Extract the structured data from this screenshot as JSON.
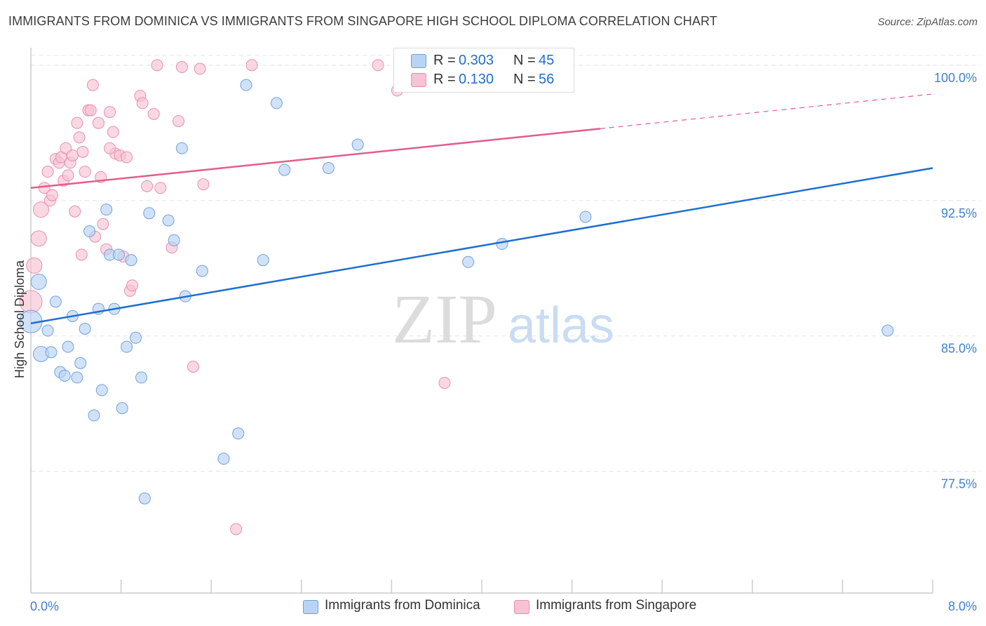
{
  "title": "IMMIGRANTS FROM DOMINICA VS IMMIGRANTS FROM SINGAPORE HIGH SCHOOL DIPLOMA CORRELATION CHART",
  "source": "Source: ZipAtlas.com",
  "watermark": {
    "zip": "ZIP",
    "atlas": "atlas"
  },
  "legend_stats": [
    {
      "r_label": "R =",
      "r_value": "0.303",
      "n_label": "N =",
      "n_value": "45"
    },
    {
      "r_label": "R =",
      "r_value": "0.130",
      "n_label": "N =",
      "n_value": "56"
    }
  ],
  "colors": {
    "dominica_fill": "#b8d3f4",
    "dominica_stroke": "#6fa1de",
    "dominica_line": "#1f6fd1",
    "singapore_fill": "#f8c3d3",
    "singapore_stroke": "#e890ac",
    "singapore_line": "#e35d8a",
    "tick_label": "#3f7fd4",
    "grid": "#e4e4e4"
  },
  "chart_data": {
    "type": "scatter",
    "title": "IMMIGRANTS FROM DOMINICA VS IMMIGRANTS FROM SINGAPORE HIGH SCHOOL DIPLOMA CORRELATION CHART",
    "xlabel": "",
    "ylabel": "High School Diploma",
    "xlim": [
      0,
      8
    ],
    "ylim": [
      71.5,
      101.2
    ],
    "x_tick_labels": [
      "0.0%",
      "8.0%"
    ],
    "y_ticks": [
      77.5,
      85.0,
      92.5,
      100.0
    ],
    "y_tick_labels": [
      "77.5%",
      "85.0%",
      "92.5%",
      "100.0%"
    ],
    "grid": "horizontal dashed",
    "legend_position": "bottom",
    "series": [
      {
        "name": "Immigrants from Dominica",
        "R": 0.303,
        "N": 45,
        "trend": {
          "x": [
            0.0,
            8.0
          ],
          "y": [
            85.7,
            94.3
          ],
          "dashed_from": null
        },
        "points": [
          {
            "x": 0.0,
            "y": 85.8,
            "s": 3
          },
          {
            "x": 0.07,
            "y": 88.0,
            "s": 2
          },
          {
            "x": 0.09,
            "y": 84.0,
            "s": 2
          },
          {
            "x": 0.15,
            "y": 85.3,
            "s": 1
          },
          {
            "x": 0.18,
            "y": 84.1,
            "s": 1
          },
          {
            "x": 0.22,
            "y": 86.9,
            "s": 1
          },
          {
            "x": 0.26,
            "y": 83.0,
            "s": 1
          },
          {
            "x": 0.3,
            "y": 82.8,
            "s": 1
          },
          {
            "x": 0.33,
            "y": 84.4,
            "s": 1
          },
          {
            "x": 0.37,
            "y": 86.1,
            "s": 1
          },
          {
            "x": 0.41,
            "y": 82.7,
            "s": 1
          },
          {
            "x": 0.44,
            "y": 83.5,
            "s": 1
          },
          {
            "x": 0.48,
            "y": 85.4,
            "s": 1
          },
          {
            "x": 0.52,
            "y": 90.8,
            "s": 1
          },
          {
            "x": 0.56,
            "y": 80.6,
            "s": 1
          },
          {
            "x": 0.6,
            "y": 86.5,
            "s": 1
          },
          {
            "x": 0.63,
            "y": 82.0,
            "s": 1
          },
          {
            "x": 0.67,
            "y": 92.0,
            "s": 1
          },
          {
            "x": 0.7,
            "y": 89.5,
            "s": 1
          },
          {
            "x": 0.74,
            "y": 86.5,
            "s": 1
          },
          {
            "x": 0.78,
            "y": 89.5,
            "s": 1
          },
          {
            "x": 0.81,
            "y": 81.0,
            "s": 1
          },
          {
            "x": 0.85,
            "y": 84.4,
            "s": 1
          },
          {
            "x": 0.89,
            "y": 89.2,
            "s": 1
          },
          {
            "x": 0.93,
            "y": 84.9,
            "s": 1
          },
          {
            "x": 0.98,
            "y": 82.7,
            "s": 1
          },
          {
            "x": 1.01,
            "y": 76.0,
            "s": 1
          },
          {
            "x": 1.05,
            "y": 91.8,
            "s": 1
          },
          {
            "x": 1.22,
            "y": 91.4,
            "s": 1
          },
          {
            "x": 1.27,
            "y": 90.3,
            "s": 1
          },
          {
            "x": 1.34,
            "y": 95.4,
            "s": 1
          },
          {
            "x": 1.37,
            "y": 87.2,
            "s": 1
          },
          {
            "x": 1.52,
            "y": 88.6,
            "s": 1
          },
          {
            "x": 1.71,
            "y": 78.2,
            "s": 1
          },
          {
            "x": 1.84,
            "y": 79.6,
            "s": 1
          },
          {
            "x": 1.91,
            "y": 98.9,
            "s": 1
          },
          {
            "x": 2.06,
            "y": 89.2,
            "s": 1
          },
          {
            "x": 2.18,
            "y": 97.9,
            "s": 1
          },
          {
            "x": 2.25,
            "y": 94.2,
            "s": 1
          },
          {
            "x": 2.64,
            "y": 94.3,
            "s": 1
          },
          {
            "x": 2.9,
            "y": 95.6,
            "s": 1
          },
          {
            "x": 3.88,
            "y": 89.1,
            "s": 1
          },
          {
            "x": 4.18,
            "y": 90.1,
            "s": 1
          },
          {
            "x": 4.92,
            "y": 91.6,
            "s": 1
          },
          {
            "x": 7.6,
            "y": 85.3,
            "s": 1
          }
        ]
      },
      {
        "name": "Immigrants from Singapore",
        "R": 0.13,
        "N": 56,
        "trend": {
          "x": [
            0.0,
            8.0
          ],
          "y": [
            93.2,
            98.4
          ],
          "dashed_from": 5.05
        },
        "points": [
          {
            "x": 0.0,
            "y": 86.9,
            "s": 3
          },
          {
            "x": 0.03,
            "y": 88.9,
            "s": 2
          },
          {
            "x": 0.07,
            "y": 90.4,
            "s": 2
          },
          {
            "x": 0.09,
            "y": 92.0,
            "s": 2
          },
          {
            "x": 0.12,
            "y": 93.2,
            "s": 1
          },
          {
            "x": 0.15,
            "y": 94.1,
            "s": 1
          },
          {
            "x": 0.17,
            "y": 92.5,
            "s": 1
          },
          {
            "x": 0.19,
            "y": 92.8,
            "s": 1
          },
          {
            "x": 0.22,
            "y": 94.8,
            "s": 1
          },
          {
            "x": 0.25,
            "y": 94.6,
            "s": 1
          },
          {
            "x": 0.27,
            "y": 94.9,
            "s": 1
          },
          {
            "x": 0.29,
            "y": 93.6,
            "s": 1
          },
          {
            "x": 0.31,
            "y": 95.4,
            "s": 1
          },
          {
            "x": 0.33,
            "y": 93.9,
            "s": 1
          },
          {
            "x": 0.35,
            "y": 94.6,
            "s": 1
          },
          {
            "x": 0.37,
            "y": 95.0,
            "s": 1
          },
          {
            "x": 0.39,
            "y": 91.9,
            "s": 1
          },
          {
            "x": 0.41,
            "y": 96.8,
            "s": 1
          },
          {
            "x": 0.43,
            "y": 96.0,
            "s": 1
          },
          {
            "x": 0.45,
            "y": 89.5,
            "s": 1
          },
          {
            "x": 0.48,
            "y": 94.1,
            "s": 1
          },
          {
            "x": 0.51,
            "y": 97.5,
            "s": 1
          },
          {
            "x": 0.53,
            "y": 97.5,
            "s": 1
          },
          {
            "x": 0.55,
            "y": 98.9,
            "s": 1
          },
          {
            "x": 0.57,
            "y": 90.5,
            "s": 1
          },
          {
            "x": 0.6,
            "y": 96.8,
            "s": 1
          },
          {
            "x": 0.62,
            "y": 93.8,
            "s": 1
          },
          {
            "x": 0.64,
            "y": 91.2,
            "s": 1
          },
          {
            "x": 0.67,
            "y": 89.8,
            "s": 1
          },
          {
            "x": 0.7,
            "y": 97.4,
            "s": 1
          },
          {
            "x": 0.73,
            "y": 96.3,
            "s": 1
          },
          {
            "x": 0.75,
            "y": 95.1,
            "s": 1
          },
          {
            "x": 0.79,
            "y": 95.0,
            "s": 1
          },
          {
            "x": 0.82,
            "y": 89.4,
            "s": 1
          },
          {
            "x": 0.85,
            "y": 94.9,
            "s": 1
          },
          {
            "x": 0.88,
            "y": 87.5,
            "s": 1
          },
          {
            "x": 0.9,
            "y": 87.8,
            "s": 1
          },
          {
            "x": 0.97,
            "y": 98.3,
            "s": 1
          },
          {
            "x": 0.99,
            "y": 97.9,
            "s": 1
          },
          {
            "x": 1.03,
            "y": 93.3,
            "s": 1
          },
          {
            "x": 1.09,
            "y": 97.3,
            "s": 1
          },
          {
            "x": 1.12,
            "y": 100.0,
            "s": 1
          },
          {
            "x": 1.15,
            "y": 93.2,
            "s": 1
          },
          {
            "x": 1.25,
            "y": 89.9,
            "s": 1
          },
          {
            "x": 1.31,
            "y": 96.9,
            "s": 1
          },
          {
            "x": 1.34,
            "y": 99.9,
            "s": 1
          },
          {
            "x": 1.44,
            "y": 83.3,
            "s": 1
          },
          {
            "x": 1.5,
            "y": 99.8,
            "s": 1
          },
          {
            "x": 1.53,
            "y": 93.4,
            "s": 1
          },
          {
            "x": 1.82,
            "y": 74.3,
            "s": 1
          },
          {
            "x": 1.96,
            "y": 100.0,
            "s": 1
          },
          {
            "x": 3.08,
            "y": 100.0,
            "s": 1
          },
          {
            "x": 3.25,
            "y": 98.6,
            "s": 1
          },
          {
            "x": 3.67,
            "y": 82.4,
            "s": 1
          },
          {
            "x": 0.7,
            "y": 95.4,
            "s": 1
          },
          {
            "x": 0.46,
            "y": 95.2,
            "s": 1
          }
        ]
      }
    ]
  }
}
